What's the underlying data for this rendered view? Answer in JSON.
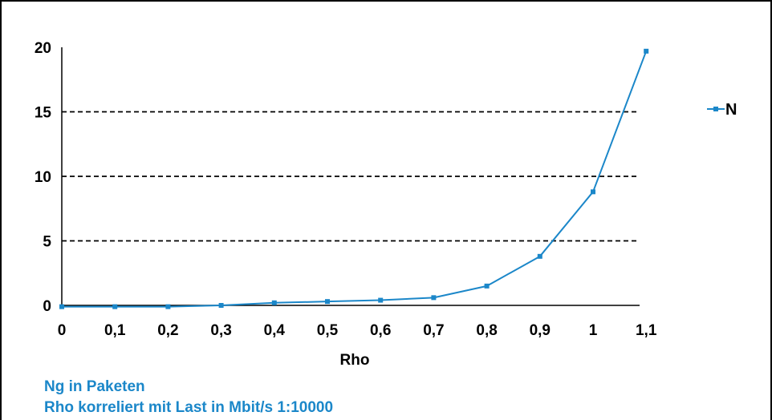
{
  "chart_data": {
    "type": "line",
    "x": [
      "0",
      "0,1",
      "0,2",
      "0,3",
      "0,4",
      "0,5",
      "0,6",
      "0,7",
      "0,8",
      "0,9",
      "1",
      "1,1"
    ],
    "xlabel": "Rho",
    "ylabel": "",
    "ylim": [
      0,
      20
    ],
    "y_ticks": [
      "0",
      "5",
      "10",
      "15",
      "20"
    ],
    "grid": "horizontal dashed",
    "legend_position": "right",
    "series": [
      {
        "name": "N",
        "color": "#1b87c9",
        "marker": "square",
        "values": [
          -0.1,
          -0.1,
          -0.1,
          0.0,
          0.2,
          0.3,
          0.4,
          0.6,
          1.5,
          3.8,
          8.8,
          19.7
        ]
      }
    ]
  },
  "notes": {
    "line1": "Ng in Paketen",
    "line2": "Rho korreliert mit Last in Mbit/s 1:10000",
    "color": "#1b87c9"
  }
}
